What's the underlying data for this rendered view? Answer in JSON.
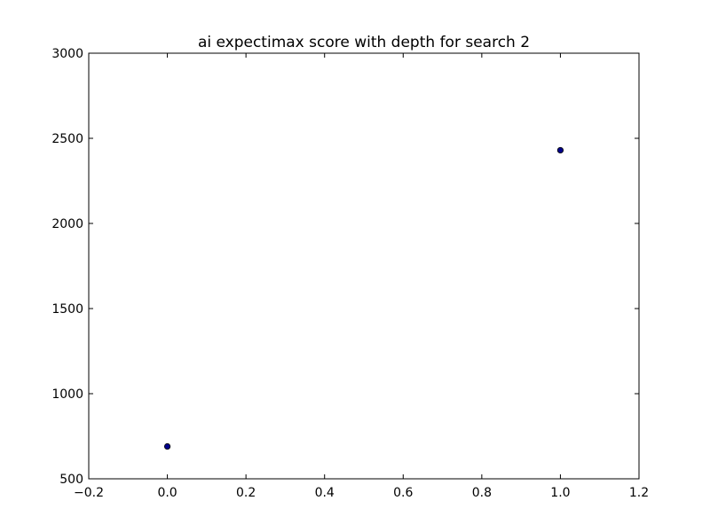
{
  "chart_data": {
    "type": "scatter",
    "title": "ai expectimax score with depth for search 2",
    "xlabel": "",
    "ylabel": "",
    "xlim": [
      -0.2,
      1.2
    ],
    "ylim": [
      500,
      3000
    ],
    "xticks": [
      -0.2,
      0.0,
      0.2,
      0.4,
      0.6,
      0.8,
      1.0,
      1.2
    ],
    "xtick_labels": [
      "−0.2",
      "0.0",
      "0.2",
      "0.4",
      "0.6",
      "0.8",
      "1.0",
      "1.2"
    ],
    "yticks": [
      500,
      1000,
      1500,
      2000,
      2500,
      3000
    ],
    "ytick_labels": [
      "500",
      "1000",
      "1500",
      "2000",
      "2500",
      "3000"
    ],
    "grid": false,
    "series": [
      {
        "x": [
          0.0,
          1.0
        ],
        "y": [
          690,
          2430
        ],
        "color": "#00008b"
      }
    ]
  }
}
